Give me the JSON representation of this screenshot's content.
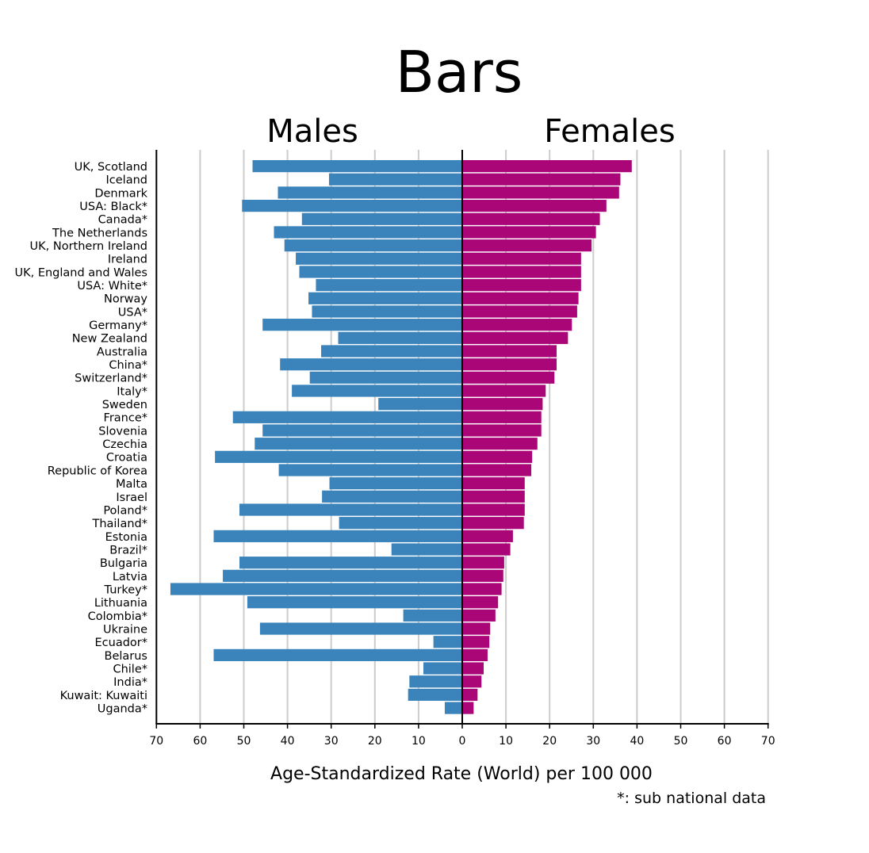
{
  "chart_data": {
    "type": "bar",
    "orientation": "horizontal",
    "layout": "butterfly",
    "title": "Bars",
    "panel_titles": [
      "Males",
      "Females"
    ],
    "xlabel": "Age-Standardized Rate (World) per 100 000",
    "footnote": "*: sub national data",
    "xlim": [
      0,
      70
    ],
    "xticks": [
      0,
      10,
      20,
      30,
      40,
      50,
      60,
      70
    ],
    "grid": true,
    "categories": [
      "UK, Scotland",
      "Iceland",
      "Denmark",
      "USA: Black*",
      "Canada*",
      "The Netherlands",
      "UK, Northern Ireland",
      "Ireland",
      "UK, England and Wales",
      "USA: White*",
      "Norway",
      "USA*",
      "Germany*",
      "New Zealand",
      "Australia",
      "China*",
      "Switzerland*",
      "Italy*",
      "Sweden",
      "France*",
      "Slovenia",
      "Czechia",
      "Croatia",
      "Republic of Korea",
      "Malta",
      "Israel",
      "Poland*",
      "Thailand*",
      "Estonia",
      "Brazil*",
      "Bulgaria",
      "Latvia",
      "Turkey*",
      "Lithuania",
      "Colombia*",
      "Ukraine",
      "Ecuador*",
      "Belarus",
      "Chile*",
      "India*",
      "Kuwait: Kuwaiti",
      "Uganda*"
    ],
    "series": [
      {
        "name": "Males",
        "color": "#3a84bb",
        "values": [
          48.0,
          30.5,
          42.2,
          50.4,
          36.7,
          43.1,
          40.7,
          38.1,
          37.3,
          33.5,
          35.2,
          34.4,
          45.7,
          28.4,
          32.3,
          41.7,
          34.9,
          39.0,
          19.2,
          52.5,
          45.7,
          47.5,
          56.6,
          42.0,
          30.4,
          32.1,
          51.0,
          28.2,
          56.9,
          16.2,
          51.0,
          54.8,
          66.8,
          49.2,
          13.5,
          46.3,
          6.6,
          56.9,
          8.9,
          12.1,
          12.4,
          4.0
        ]
      },
      {
        "name": "Females",
        "color": "#aa0678",
        "values": [
          38.8,
          36.2,
          35.9,
          33.0,
          31.5,
          30.6,
          29.6,
          27.2,
          27.2,
          27.2,
          26.6,
          26.3,
          25.1,
          24.2,
          21.6,
          21.6,
          21.1,
          19.1,
          18.4,
          18.1,
          18.1,
          17.2,
          16.0,
          15.8,
          14.3,
          14.3,
          14.3,
          14.1,
          11.6,
          11.0,
          9.6,
          9.4,
          9.0,
          8.2,
          7.6,
          6.4,
          6.2,
          5.8,
          4.9,
          4.4,
          3.5,
          2.6
        ]
      }
    ]
  }
}
